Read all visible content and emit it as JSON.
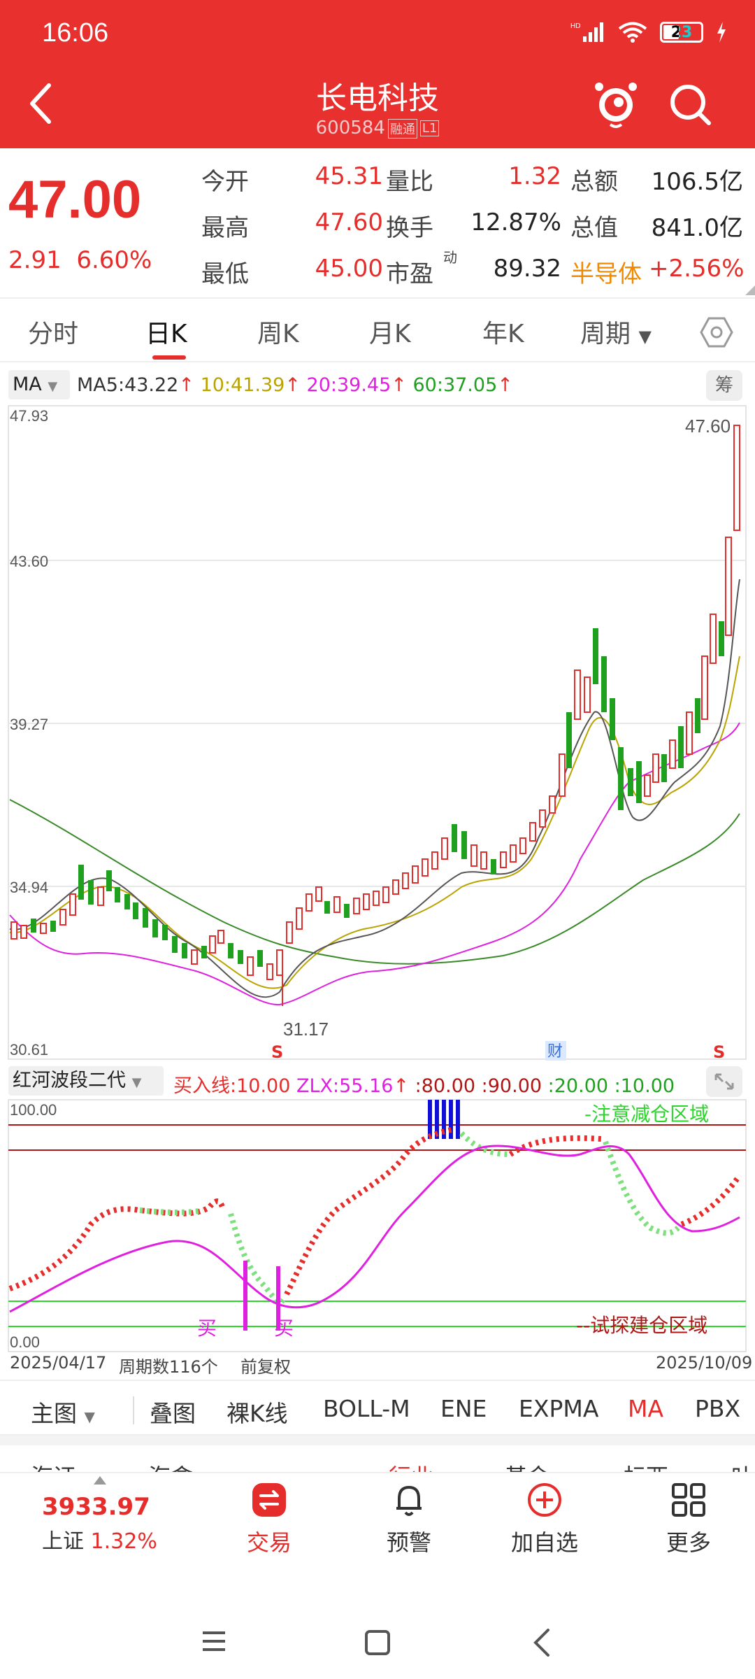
{
  "status": {
    "time": "16:06",
    "battery": "23"
  },
  "header": {
    "title": "长电科技",
    "code": "600584",
    "tag1": "融",
    "tag2": "通",
    "tag3": "L1"
  },
  "quote": {
    "price": "47.00",
    "change": "2.91",
    "change_pct": "6.60%",
    "rows": [
      {
        "l1": "今开",
        "v1": "45.31",
        "l2": "量比",
        "v2": "1.32",
        "l3": "总额",
        "v3": "106.5亿"
      },
      {
        "l1": "最高",
        "v1": "47.60",
        "l2": "换手",
        "v2": "12.87%",
        "l3": "总值",
        "v3": "841.0亿"
      },
      {
        "l1": "最低",
        "v1": "45.00",
        "l2": "市盈",
        "l2sup": "动",
        "v2": "89.32",
        "l3": "半导体",
        "v3": "+2.56%"
      }
    ]
  },
  "tabs": [
    "分时",
    "日K",
    "周K",
    "月K",
    "年K",
    "周期"
  ],
  "ma": {
    "selector": "MA",
    "ma5": "MA5:43.22",
    "ma10": "10:41.39",
    "ma20": "20:39.45",
    "ma60": "60:37.05",
    "arrow": "↑",
    "chou": "筹"
  },
  "chart": {
    "ylabels": [
      "47.93",
      "43.60",
      "39.27",
      "34.94",
      "30.61"
    ],
    "high_label": "47.60",
    "low_label": "31.17",
    "mark_s1": "S",
    "mark_cai": "财",
    "mark_s2": "S"
  },
  "indicator": {
    "selector": "红河波段二代",
    "buy": "买入线:10.00",
    "zlx": "ZLX:55.16",
    "arrow": "↑",
    "lvl80": ":80.00",
    "lvl90": ":90.00",
    "lvl20": ":20.00",
    "lvl10": ":10.00",
    "top_label": "100.00",
    "bottom_label": "0.00",
    "zone_top": "-注意减仓区域",
    "zone_bottom": "--试探建仓区域",
    "buy1": "买",
    "buy2": "买"
  },
  "dates": {
    "start": "2025/04/17",
    "count": "周期数116个",
    "adjust": "前复权",
    "end": "2025/10/09"
  },
  "main_tabs": [
    "主图",
    "叠图",
    "裸K线",
    "BOLL-M",
    "ENE",
    "EXPMA",
    "MA",
    "PBX"
  ],
  "partial_row": [
    "海证",
    "海盒",
    "行业",
    "基金",
    "标西",
    "叶"
  ],
  "nav": {
    "index_value": "3933.97",
    "index_name": "上证",
    "index_pct": "1.32%",
    "trade": "交易",
    "alert": "预警",
    "add": "加自选",
    "more": "更多"
  },
  "colors": {
    "red": "#e52d2b",
    "header": "#e8302f",
    "green": "#1fa01f",
    "magenta": "#e020e0",
    "olive": "#b9a400",
    "ma60": "#3a8a2a"
  }
}
